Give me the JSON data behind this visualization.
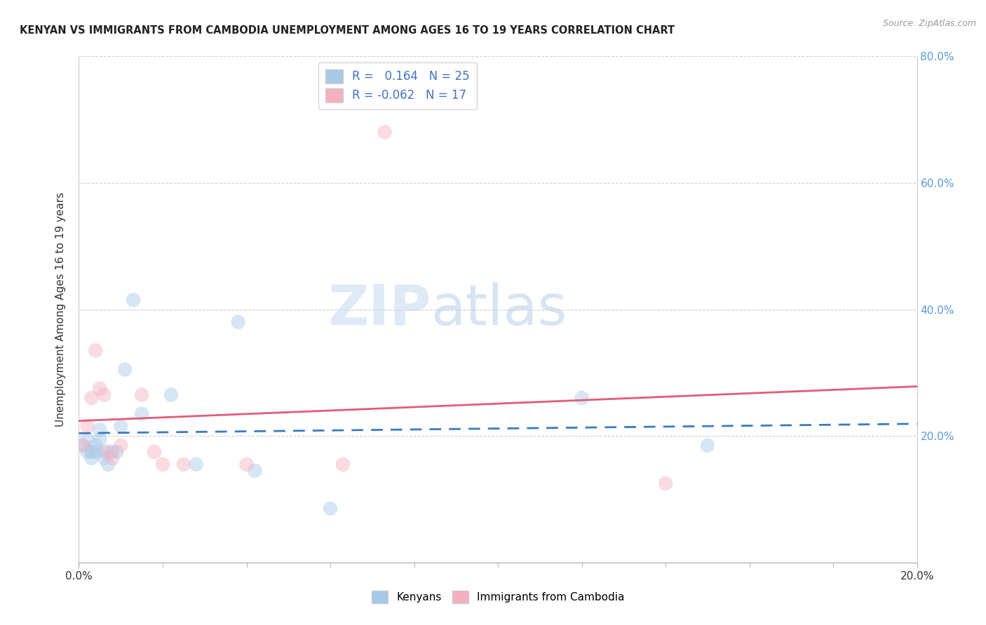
{
  "title": "KENYAN VS IMMIGRANTS FROM CAMBODIA UNEMPLOYMENT AMONG AGES 16 TO 19 YEARS CORRELATION CHART",
  "source": "Source: ZipAtlas.com",
  "ylabel": "Unemployment Among Ages 16 to 19 years",
  "xlim": [
    0.0,
    0.2
  ],
  "ylim": [
    0.0,
    0.8
  ],
  "yticks": [
    0.0,
    0.2,
    0.4,
    0.6,
    0.8
  ],
  "right_yticks": [
    0.2,
    0.4,
    0.6,
    0.8
  ],
  "R_kenyan": 0.164,
  "N_kenyan": 25,
  "R_cambodia": -0.062,
  "N_cambodia": 17,
  "kenyan_color": "#a8c8e8",
  "cambodia_color": "#f5b0c0",
  "kenyan_line_color": "#3a7bbf",
  "cambodia_line_color": "#e05c7a",
  "kenyan_x": [
    0.001,
    0.002,
    0.002,
    0.003,
    0.003,
    0.004,
    0.004,
    0.005,
    0.005,
    0.006,
    0.006,
    0.007,
    0.008,
    0.009,
    0.01,
    0.011,
    0.013,
    0.015,
    0.022,
    0.028,
    0.038,
    0.042,
    0.06,
    0.12,
    0.15
  ],
  "kenyan_y": [
    0.185,
    0.175,
    0.195,
    0.175,
    0.165,
    0.185,
    0.175,
    0.195,
    0.21,
    0.175,
    0.165,
    0.155,
    0.175,
    0.175,
    0.215,
    0.305,
    0.415,
    0.235,
    0.265,
    0.155,
    0.38,
    0.145,
    0.085,
    0.26,
    0.185
  ],
  "cambodia_x": [
    0.001,
    0.002,
    0.003,
    0.004,
    0.005,
    0.006,
    0.007,
    0.008,
    0.01,
    0.015,
    0.018,
    0.02,
    0.025,
    0.04,
    0.063,
    0.073,
    0.14
  ],
  "cambodia_y": [
    0.185,
    0.215,
    0.26,
    0.335,
    0.275,
    0.265,
    0.175,
    0.165,
    0.185,
    0.265,
    0.175,
    0.155,
    0.155,
    0.155,
    0.155,
    0.68,
    0.125
  ],
  "watermark_zip": "ZIP",
  "watermark_atlas": "atlas",
  "background_color": "#ffffff",
  "grid_color": "#d0d0d0",
  "scatter_size": 220,
  "scatter_alpha": 0.45
}
